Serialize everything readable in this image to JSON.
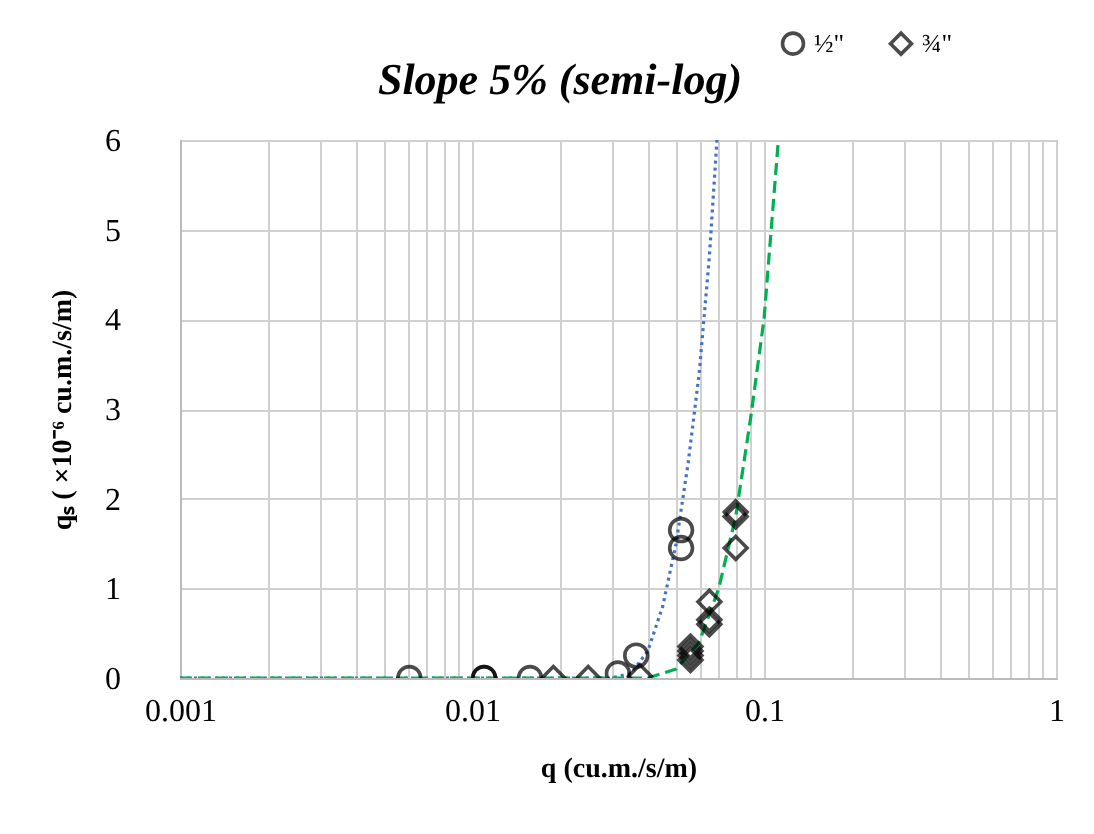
{
  "chart_data": {
    "type": "scatter",
    "title": "Slope 5% (semi-log)",
    "xlabel": "q (cu.m./s/m)",
    "ylabel": "qₛ ( ×10⁻⁶ cu.m./s/m)",
    "log": "x",
    "grid": true,
    "legend": "top right",
    "xlim": [
      0.001,
      1
    ],
    "ylim": [
      0,
      6
    ],
    "xticks": [
      0.001,
      {
        "value": 0.002,
        "label": null
      },
      {
        "value": 0.003,
        "label": null
      },
      {
        "value": 0.004,
        "label": null
      },
      {
        "value": 0.005,
        "label": null
      },
      {
        "value": 0.006,
        "label": null
      },
      {
        "value": 0.007,
        "label": null
      },
      {
        "value": 0.008,
        "label": null
      },
      {
        "value": 0.009,
        "label": null
      },
      0.01,
      {
        "value": 0.02,
        "label": null
      },
      {
        "value": 0.03,
        "label": null
      },
      {
        "value": 0.04,
        "label": null
      },
      {
        "value": 0.05,
        "label": null
      },
      {
        "value": 0.06,
        "label": null
      },
      {
        "value": 0.07,
        "label": null
      },
      {
        "value": 0.08,
        "label": null
      },
      {
        "value": 0.09,
        "label": null
      },
      0.1,
      {
        "value": 0.2,
        "label": null
      },
      {
        "value": 0.3,
        "label": null
      },
      {
        "value": 0.4,
        "label": null
      },
      {
        "value": 0.5,
        "label": null
      },
      {
        "value": 0.6,
        "label": null
      },
      {
        "value": 0.7,
        "label": null
      },
      {
        "value": 0.8,
        "label": null
      },
      {
        "value": 0.9,
        "label": null
      },
      1
    ],
    "yticks": [
      0,
      1,
      2,
      3,
      4,
      5,
      6
    ],
    "series": [
      {
        "type": "line",
        "color": "#4472c4",
        "line_style": "dotted",
        "marker": "none",
        "x": [
          0.001,
          0.03,
          0.035,
          0.04,
          0.045,
          0.05,
          0.055,
          0.06,
          0.065,
          0.069
        ],
        "values": [
          0,
          0,
          0.05,
          0.3,
          0.8,
          1.5,
          2.4,
          3.4,
          4.7,
          6
        ]
      },
      {
        "type": "line",
        "color": "#00b050",
        "line_style": "dashed",
        "marker": "none",
        "x": [
          0.001,
          0.04,
          0.05,
          0.06,
          0.07,
          0.08,
          0.09,
          0.1,
          0.112
        ],
        "values": [
          0,
          0,
          0.1,
          0.4,
          1.0,
          1.8,
          2.9,
          4.0,
          6
        ]
      },
      {
        "name": "½\"",
        "color": "#000000",
        "marker": "circle",
        "x": [
          0.0061,
          0.011,
          0.011,
          0.0158,
          0.0316,
          0.0365,
          0.052,
          0.052
        ],
        "values": [
          0,
          0,
          0,
          0,
          0.05,
          0.25,
          1.65,
          1.45
        ]
      },
      {
        "name": "¾\"",
        "color": "#000000",
        "marker": "diamond",
        "x": [
          0.019,
          0.025,
          0.0376,
          0.056,
          0.056,
          0.056,
          0.056,
          0.065,
          0.065,
          0.065,
          0.08,
          0.08,
          0.08
        ],
        "values": [
          0,
          0,
          0.02,
          0.2,
          0.25,
          0.3,
          0.35,
          0.85,
          0.65,
          0.6,
          1.85,
          1.8,
          1.45
        ]
      }
    ]
  }
}
